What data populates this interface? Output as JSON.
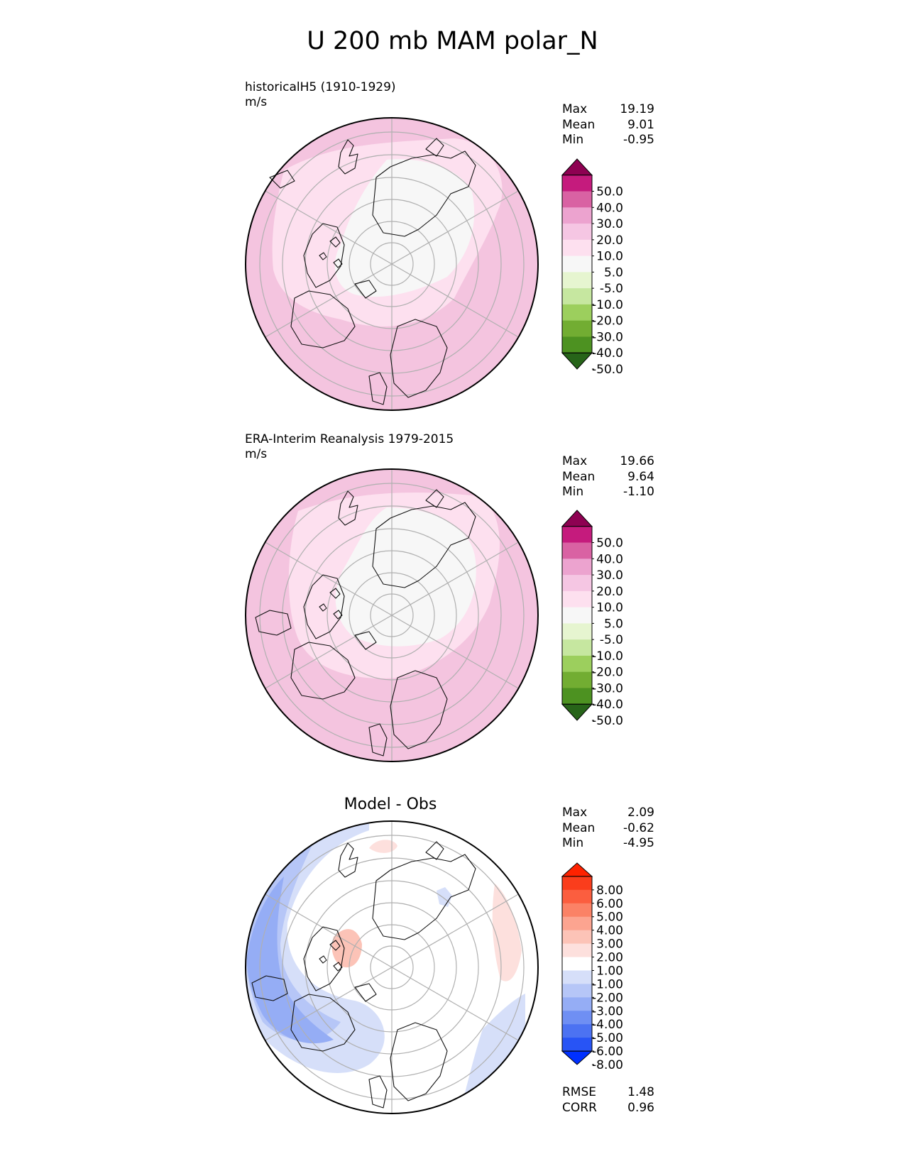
{
  "figure": {
    "title": "U 200 mb MAM polar_N"
  },
  "colors": {
    "pinkgreen": [
      "#276419",
      "#4d9221",
      "#7fbc41",
      "#b8e186",
      "#e6f5d0",
      "#f7f7f7",
      "#fde0ef",
      "#f1b6da",
      "#de77ae",
      "#c51b7d",
      "#8e0152"
    ],
    "pinkgreen_panel_levels": [
      "#276419",
      "#4d9221",
      "#72ad32",
      "#9ccf5d",
      "#c6e7a0",
      "#e6f5d0",
      "#f7f7f7",
      "#fde0ef",
      "#f5c6e3",
      "#eca3cf",
      "#d962a3",
      "#c51b7d",
      "#8e0152"
    ],
    "diff_levels": [
      "#0030ff",
      "#2854f5",
      "#4c72f2",
      "#6f8ff3",
      "#95adf5",
      "#b6c6f7",
      "#d6dff9",
      "#ffffff",
      "#fde0dd",
      "#fcc3b7",
      "#fca490",
      "#fb8266",
      "#fb5e3f",
      "#fa3d1c",
      "#ff2200"
    ],
    "ocean_pink_base": "#f4c4df",
    "coast": "#111111",
    "grid": "#b0b0b0"
  },
  "panels": [
    {
      "name": "historicalH5 (1910-1929)",
      "units": "m/s",
      "stats": [
        {
          "label": "Max",
          "value": "19.19"
        },
        {
          "label": "Mean",
          "value": "9.01"
        },
        {
          "label": "Min",
          "value": "-0.95"
        }
      ]
    },
    {
      "name": "ERA-Interim Reanalysis 1979-2015",
      "units": "m/s",
      "stats": [
        {
          "label": "Max",
          "value": "19.66"
        },
        {
          "label": "Mean",
          "value": "9.64"
        },
        {
          "label": "Min",
          "value": "-1.10"
        }
      ]
    },
    {
      "name": "Model - Obs",
      "stats": [
        {
          "label": "Max",
          "value": "2.09"
        },
        {
          "label": "Mean",
          "value": "-0.62"
        },
        {
          "label": "Min",
          "value": "-4.95"
        }
      ],
      "metrics": [
        {
          "label": "RMSE",
          "value": "1.48"
        },
        {
          "label": "CORR",
          "value": "0.96"
        }
      ]
    }
  ],
  "chart_data": [
    {
      "type": "heatmap",
      "projection": "north-polar-stereographic",
      "title": "historicalH5 (1910-1929)",
      "units": "m/s",
      "colorbar_levels": [
        -50,
        -40,
        -30,
        -20,
        -10,
        -5,
        5,
        10,
        20,
        30,
        40,
        50
      ],
      "colorbar_tick_labels": [
        "50.0",
        "40.0",
        "30.0",
        "20.0",
        "10.0",
        "5.0",
        "-5.0",
        "-10.0",
        "-20.0",
        "-30.0",
        "-40.0",
        "-50.0"
      ],
      "extend": "both",
      "stats": {
        "max": 19.19,
        "mean": 9.01,
        "min": -0.95
      }
    },
    {
      "type": "heatmap",
      "projection": "north-polar-stereographic",
      "title": "ERA-Interim Reanalysis 1979-2015",
      "units": "m/s",
      "colorbar_levels": [
        -50,
        -40,
        -30,
        -20,
        -10,
        -5,
        5,
        10,
        20,
        30,
        40,
        50
      ],
      "colorbar_tick_labels": [
        "50.0",
        "40.0",
        "30.0",
        "20.0",
        "10.0",
        "5.0",
        "-5.0",
        "-10.0",
        "-20.0",
        "-30.0",
        "-40.0",
        "-50.0"
      ],
      "extend": "both",
      "stats": {
        "max": 19.66,
        "mean": 9.64,
        "min": -1.1
      }
    },
    {
      "type": "heatmap",
      "projection": "north-polar-stereographic",
      "title": "Model - Obs",
      "colorbar_levels": [
        -8,
        -6,
        -5,
        -4,
        -3,
        -2,
        -1,
        1,
        2,
        3,
        4,
        5,
        6,
        8
      ],
      "colorbar_tick_labels": [
        "8.00",
        "6.00",
        "5.00",
        "4.00",
        "3.00",
        "2.00",
        "1.00",
        "-1.00",
        "-2.00",
        "-3.00",
        "-4.00",
        "-5.00",
        "-6.00",
        "-8.00"
      ],
      "extend": "both",
      "stats": {
        "max": 2.09,
        "mean": -0.62,
        "min": -4.95
      },
      "metrics": {
        "rmse": 1.48,
        "corr": 0.96
      }
    }
  ]
}
